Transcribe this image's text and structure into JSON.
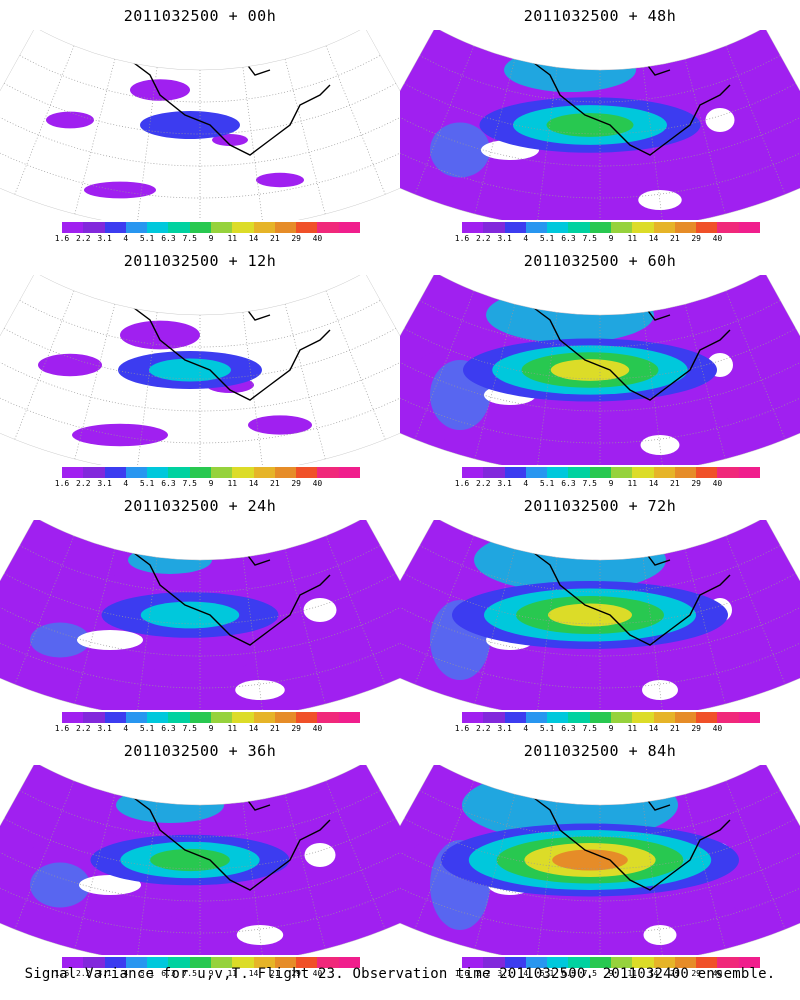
{
  "panels": [
    {
      "title": "2011032500 + 00h",
      "level": 0.0
    },
    {
      "title": "2011032500 + 48h",
      "level": 0.55
    },
    {
      "title": "2011032500 + 12h",
      "level": 0.2
    },
    {
      "title": "2011032500 + 60h",
      "level": 0.7
    },
    {
      "title": "2011032500 + 24h",
      "level": 0.35
    },
    {
      "title": "2011032500 + 72h",
      "level": 0.8
    },
    {
      "title": "2011032500 + 36h",
      "level": 0.45
    },
    {
      "title": "2011032500 + 84h",
      "level": 0.9
    }
  ],
  "colorbar": {
    "colors": [
      "#a020f0",
      "#8228dc",
      "#3c3cf0",
      "#2896f0",
      "#00c8dc",
      "#00d2a0",
      "#28c850",
      "#96d23c",
      "#dcdc28",
      "#e6b428",
      "#e68c28",
      "#f05028",
      "#f0287a",
      "#f01e8c"
    ],
    "labels": [
      "1.6",
      "2.2",
      "3.1",
      "4",
      "5.1",
      "6.3",
      "7.5",
      "9",
      "11",
      "14",
      "21",
      "29",
      "40"
    ]
  },
  "caption": "Signal Variance for u,v,T. Flight 23. Observation time 2011032500. 2011032400 ensemble."
}
